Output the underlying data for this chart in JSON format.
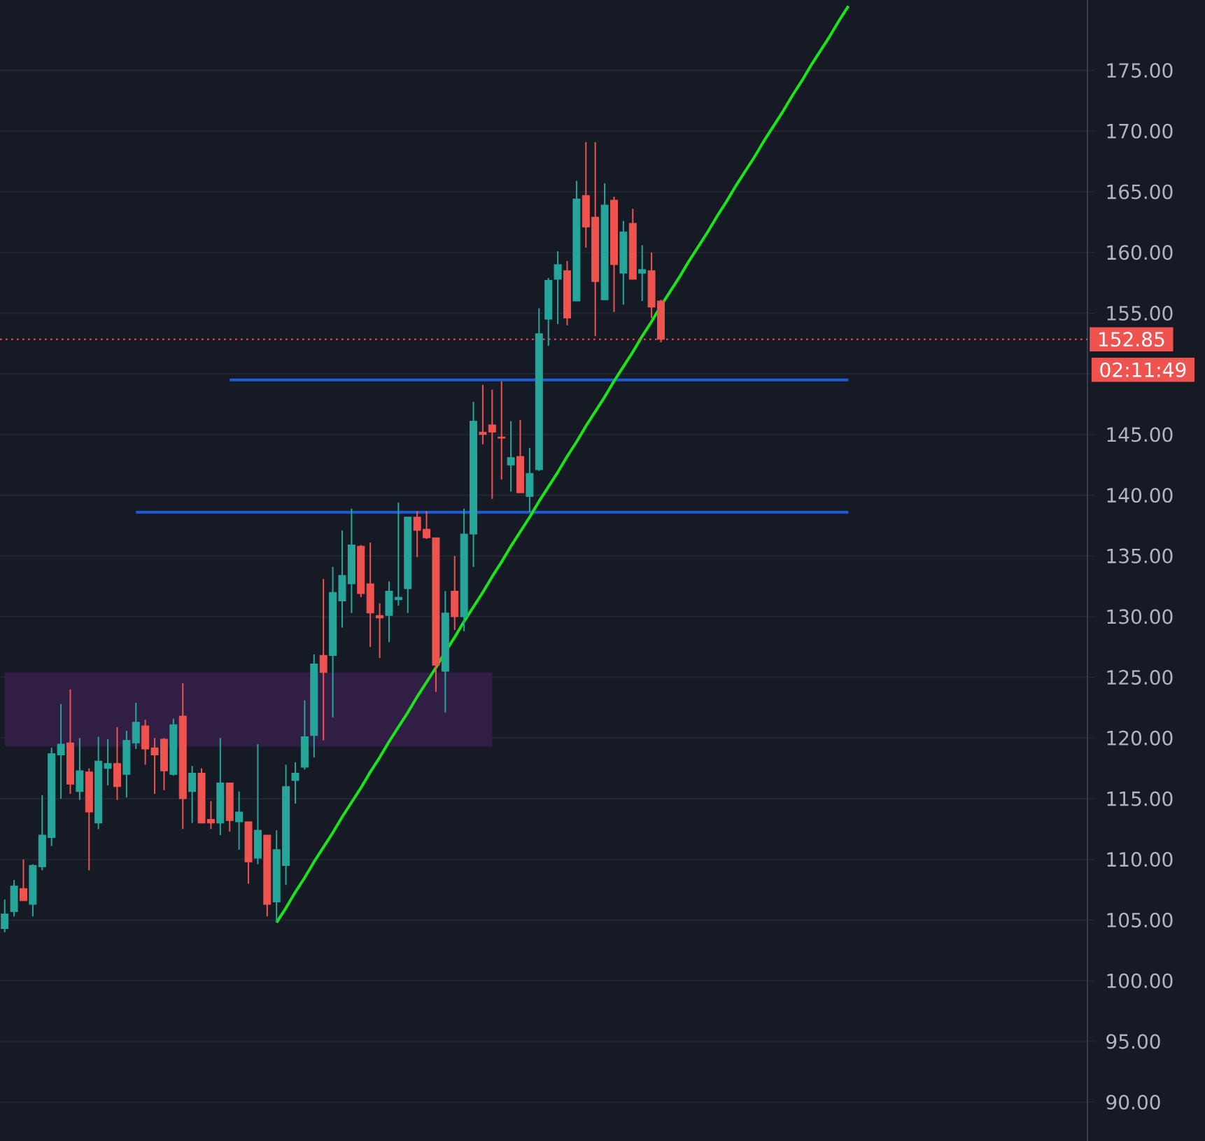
{
  "chart_data": {
    "type": "candlestick",
    "categories": [
      null,
      null,
      null,
      null,
      null,
      null,
      null,
      null,
      null,
      null,
      null,
      null,
      null,
      null,
      null,
      null,
      null,
      null,
      null,
      null,
      null,
      null,
      null,
      null,
      null,
      null,
      null,
      null,
      null,
      null,
      null,
      null,
      null,
      null,
      null,
      null,
      null,
      null,
      null,
      null,
      null,
      null,
      null,
      null,
      null,
      null,
      null,
      null,
      null,
      null,
      null,
      null,
      null,
      null,
      null,
      null,
      null,
      null,
      null,
      null,
      null,
      null,
      null,
      null,
      null,
      null,
      null,
      null,
      null,
      null,
      null,
      null,
      null,
      null,
      null,
      null,
      null,
      null,
      null,
      null,
      null,
      null,
      null,
      null,
      null,
      null,
      null,
      null,
      null,
      null,
      null,
      null,
      null,
      null,
      null,
      null,
      null,
      null,
      null,
      null,
      null,
      null,
      null,
      null,
      null,
      null,
      null,
      null,
      null,
      null,
      null,
      null,
      null,
      null,
      null,
      null
    ],
    "ohlc": [
      [
        104.3,
        106.7,
        104.0,
        105.5
      ],
      [
        105.7,
        108.3,
        105.3,
        107.8
      ],
      [
        107.6,
        110.0,
        106.6,
        106.6
      ],
      [
        106.3,
        109.6,
        105.3,
        109.5
      ],
      [
        109.4,
        115.3,
        109.1,
        112.0
      ],
      [
        111.8,
        119.2,
        111.1,
        118.7
      ],
      [
        118.6,
        122.8,
        115.0,
        119.5
      ],
      [
        119.6,
        124.0,
        115.4,
        116.2
      ],
      [
        115.6,
        120.0,
        114.9,
        117.3
      ],
      [
        117.2,
        117.5,
        109.1,
        113.9
      ],
      [
        113.0,
        120.1,
        112.5,
        118.1
      ],
      [
        117.5,
        119.9,
        116.1,
        117.9
      ],
      [
        117.9,
        120.9,
        114.9,
        116.0
      ],
      [
        117.0,
        120.6,
        115.1,
        119.8
      ],
      [
        119.6,
        122.9,
        119.1,
        121.3
      ],
      [
        121.0,
        121.5,
        117.8,
        119.1
      ],
      [
        119.2,
        120.0,
        115.4,
        118.6
      ],
      [
        119.9,
        120.0,
        115.7,
        117.3
      ],
      [
        117.0,
        121.6,
        116.9,
        121.1
      ],
      [
        121.8,
        124.5,
        112.5,
        115.0
      ],
      [
        115.6,
        117.7,
        113.0,
        117.1
      ],
      [
        117.1,
        117.5,
        113.0,
        113.0
      ],
      [
        113.3,
        114.8,
        112.5,
        113.0
      ],
      [
        113.0,
        120.0,
        112.0,
        116.3
      ],
      [
        116.3,
        116.3,
        112.3,
        113.2
      ],
      [
        113.1,
        115.6,
        110.8,
        113.9
      ],
      [
        113.1,
        113.1,
        108.0,
        109.8
      ],
      [
        110.1,
        119.5,
        109.6,
        112.4
      ],
      [
        112.0,
        112.0,
        105.3,
        106.3
      ],
      [
        106.5,
        112.4,
        104.8,
        110.8
      ],
      [
        109.5,
        117.8,
        107.9,
        116.0
      ],
      [
        116.5,
        118.0,
        114.6,
        117.1
      ],
      [
        117.6,
        123.1,
        117.4,
        120.1
      ],
      [
        120.2,
        126.9,
        118.4,
        126.1
      ],
      [
        126.8,
        133.1,
        119.8,
        125.4
      ],
      [
        126.8,
        134.1,
        121.7,
        132.0
      ],
      [
        131.3,
        137.1,
        129.1,
        133.4
      ],
      [
        132.7,
        138.9,
        130.3,
        135.9
      ],
      [
        135.8,
        135.9,
        131.6,
        131.9
      ],
      [
        132.7,
        136.1,
        127.5,
        130.3
      ],
      [
        130.1,
        131.1,
        126.6,
        129.9
      ],
      [
        130.1,
        132.9,
        127.9,
        132.1
      ],
      [
        131.4,
        139.4,
        130.9,
        131.6
      ],
      [
        132.3,
        138.2,
        130.3,
        138.2
      ],
      [
        138.2,
        138.7,
        134.9,
        137.1
      ],
      [
        137.2,
        138.7,
        136.4,
        136.5
      ],
      [
        136.5,
        136.5,
        123.8,
        126.0
      ],
      [
        125.5,
        132.1,
        122.1,
        130.3
      ],
      [
        132.1,
        135.0,
        128.9,
        130.0
      ],
      [
        130.0,
        138.9,
        128.8,
        136.8
      ],
      [
        136.8,
        147.7,
        134.1,
        146.1
      ],
      [
        145.2,
        149.1,
        144.2,
        145.0
      ],
      [
        145.8,
        148.7,
        139.7,
        145.2
      ],
      [
        144.8,
        149.4,
        141.3,
        144.7
      ],
      [
        142.5,
        146.1,
        140.3,
        143.1
      ],
      [
        143.2,
        146.2,
        140.2,
        140.2
      ],
      [
        139.9,
        143.9,
        138.6,
        141.8
      ],
      [
        142.1,
        155.4,
        142.0,
        153.3
      ],
      [
        154.5,
        157.9,
        152.3,
        157.7
      ],
      [
        157.8,
        160.1,
        154.1,
        159.0
      ],
      [
        158.5,
        159.3,
        154.0,
        154.6
      ],
      [
        156.0,
        165.9,
        156.0,
        164.4
      ],
      [
        164.7,
        169.1,
        160.4,
        162.1
      ],
      [
        162.9,
        169.1,
        153.1,
        157.6
      ],
      [
        156.1,
        165.7,
        156.1,
        163.9
      ],
      [
        164.3,
        164.6,
        155.1,
        159.0
      ],
      [
        158.3,
        162.6,
        155.7,
        161.7
      ],
      [
        162.4,
        163.6,
        157.8,
        157.8
      ],
      [
        158.3,
        160.6,
        156.0,
        158.6
      ],
      [
        158.5,
        160.0,
        154.6,
        155.5
      ],
      [
        156.0,
        156.1,
        152.6,
        152.85
      ],
      null,
      null,
      null,
      null,
      null,
      null,
      null,
      null,
      null,
      null,
      null,
      null,
      null,
      null,
      null,
      null,
      null,
      null,
      null,
      null,
      null,
      null,
      null,
      null,
      null,
      null,
      null,
      null,
      null,
      null,
      null,
      null,
      null,
      null,
      null,
      null,
      null,
      null,
      null,
      null,
      null,
      null,
      null,
      null,
      null
    ],
    "colors": [
      "#26a69a",
      "#26a69a",
      "#ef5350",
      "#26a69a",
      "#26a69a",
      "#26a69a",
      "#26a69a",
      "#ef5350",
      "#26a69a",
      "#ef5350",
      "#26a69a",
      "#26a69a",
      "#ef5350",
      "#26a69a",
      "#26a69a",
      "#ef5350",
      "#ef5350",
      "#ef5350",
      "#26a69a",
      "#ef5350",
      "#26a69a",
      "#ef5350",
      "#ef5350",
      "#26a69a",
      "#ef5350",
      "#26a69a",
      "#ef5350",
      "#26a69a",
      "#ef5350",
      "#26a69a",
      "#26a69a",
      "#26a69a",
      "#26a69a",
      "#26a69a",
      "#ef5350",
      "#26a69a",
      "#26a69a",
      "#26a69a",
      "#ef5350",
      "#ef5350",
      "#ef5350",
      "#26a69a",
      "#26a69a",
      "#26a69a",
      "#ef5350",
      "#ef5350",
      "#ef5350",
      "#26a69a",
      "#ef5350",
      "#26a69a",
      "#26a69a",
      "#ef5350",
      "#ef5350",
      "#ef5350",
      "#26a69a",
      "#ef5350",
      "#26a69a",
      "#26a69a",
      "#26a69a",
      "#26a69a",
      "#ef5350",
      "#26a69a",
      "#ef5350",
      "#ef5350",
      "#26a69a",
      "#ef5350",
      "#26a69a",
      "#ef5350",
      "#26a69a",
      "#ef5350",
      "#ef5350",
      null,
      null,
      null,
      null,
      null,
      null,
      null,
      null,
      null,
      null,
      null,
      null,
      null,
      null,
      null,
      null,
      null,
      null,
      null,
      null,
      null,
      null,
      null,
      null,
      null,
      null,
      null,
      null,
      null,
      null,
      null,
      null,
      null,
      null,
      null,
      null,
      null,
      null,
      null,
      null,
      null,
      null,
      null,
      null,
      null
    ],
    "series": [
      {
        "type": "line",
        "color": "#311e44",
        "values": [
          null,
          null,
          null,
          null,
          null,
          null,
          null,
          null,
          null,
          null,
          null,
          null,
          null,
          null,
          null,
          null,
          null,
          null,
          null,
          null,
          null,
          null,
          null,
          null,
          null,
          null,
          null,
          null,
          null,
          null,
          null,
          null,
          null,
          null,
          null,
          null,
          null,
          null,
          null,
          null,
          null,
          null,
          null,
          null,
          null,
          null,
          null,
          null,
          null,
          null,
          null,
          null,
          null,
          null,
          null,
          null,
          null,
          null,
          null,
          null,
          null,
          null,
          null,
          null,
          null,
          null,
          null,
          null,
          null,
          null,
          null,
          null,
          null,
          null,
          null,
          null,
          null,
          null,
          null,
          null,
          null,
          null,
          null,
          null,
          null,
          null,
          null,
          null,
          null,
          null,
          null,
          null,
          null,
          null,
          null,
          null,
          null,
          null,
          null,
          null,
          null,
          null,
          null,
          null,
          null,
          null,
          null,
          null,
          null,
          null,
          null,
          null,
          null,
          null,
          null,
          null
        ],
        "upper": [
          125.4,
          125.4,
          125.4,
          125.4,
          125.4,
          125.4,
          125.4,
          125.4,
          125.4,
          125.4,
          125.4,
          125.4,
          125.4,
          125.4,
          125.4,
          125.4,
          125.4,
          125.4,
          125.4,
          125.4,
          125.4,
          125.4,
          125.4,
          125.4,
          125.4,
          125.4,
          125.4,
          125.4,
          125.4,
          125.4,
          125.4,
          125.4,
          125.4,
          125.4,
          125.4,
          125.4,
          125.4,
          125.4,
          125.4,
          125.4,
          125.4,
          125.4,
          125.4,
          125.4,
          125.4,
          125.4,
          125.4,
          125.4,
          125.4,
          125.4,
          125.4,
          125.4,
          125.4,
          null,
          null,
          null,
          null,
          null,
          null,
          null,
          null,
          null,
          null,
          null,
          null,
          null,
          null,
          null,
          null,
          null,
          null,
          null,
          null,
          null,
          null,
          null,
          null,
          null,
          null,
          null,
          null,
          null,
          null,
          null,
          null,
          null,
          null,
          null,
          null,
          null,
          null,
          null,
          null,
          null,
          null,
          null,
          null,
          null,
          null,
          null,
          null,
          null,
          null,
          null,
          null,
          null,
          null,
          null,
          null,
          null,
          null,
          null,
          null,
          null,
          null,
          null
        ],
        "lower": [
          119.3,
          119.3,
          119.3,
          119.3,
          119.3,
          119.3,
          119.3,
          119.3,
          119.3,
          119.3,
          119.3,
          119.3,
          119.3,
          119.3,
          119.3,
          119.3,
          119.3,
          119.3,
          119.3,
          119.3,
          119.3,
          119.3,
          119.3,
          119.3,
          119.3,
          119.3,
          119.3,
          119.3,
          119.3,
          119.3,
          119.3,
          119.3,
          119.3,
          119.3,
          119.3,
          119.3,
          119.3,
          119.3,
          119.3,
          119.3,
          119.3,
          119.3,
          119.3,
          119.3,
          119.3,
          119.3,
          119.3,
          119.3,
          119.3,
          119.3,
          119.3,
          119.3,
          119.3,
          null,
          null,
          null,
          null,
          null,
          null,
          null,
          null,
          null,
          null,
          null,
          null,
          null,
          null,
          null,
          null,
          null,
          null,
          null,
          null,
          null,
          null,
          null,
          null,
          null,
          null,
          null,
          null,
          null,
          null,
          null,
          null,
          null,
          null,
          null,
          null,
          null,
          null,
          null,
          null,
          null,
          null,
          null,
          null,
          null,
          null,
          null,
          null,
          null,
          null,
          null,
          null,
          null,
          null,
          null,
          null,
          null,
          null,
          null,
          null,
          null,
          null,
          null
        ]
      },
      {
        "type": "line",
        "color": "#1e5bd6",
        "values": [
          null,
          null,
          null,
          null,
          null,
          null,
          null,
          null,
          null,
          null,
          null,
          null,
          null,
          null,
          null,
          null,
          null,
          null,
          null,
          null,
          null,
          null,
          null,
          null,
          149.5,
          149.5,
          149.5,
          149.5,
          149.5,
          149.5,
          149.5,
          149.5,
          149.5,
          149.5,
          149.5,
          149.5,
          149.5,
          149.5,
          149.5,
          149.5,
          149.5,
          149.5,
          149.5,
          149.5,
          149.5,
          149.5,
          149.5,
          149.5,
          149.5,
          149.5,
          149.5,
          149.5,
          149.5,
          149.5,
          149.5,
          149.5,
          149.5,
          149.5,
          149.5,
          149.5,
          149.5,
          149.5,
          149.5,
          149.5,
          149.5,
          149.5,
          149.5,
          149.5,
          149.5,
          149.5,
          149.5,
          149.5,
          149.5,
          149.5,
          149.5,
          149.5,
          149.5,
          149.5,
          149.5,
          149.5,
          149.5,
          149.5,
          149.5,
          149.5,
          149.5,
          149.5,
          149.5,
          149.5,
          149.5,
          149.5,
          149.5,
          null,
          null,
          null,
          null,
          null,
          null,
          null,
          null,
          null,
          null,
          null,
          null,
          null,
          null,
          null,
          null,
          null,
          null,
          null,
          null,
          null,
          null,
          null,
          null,
          null
        ]
      },
      {
        "type": "line",
        "color": "#1e5bd6",
        "values": [
          null,
          null,
          null,
          null,
          null,
          null,
          null,
          null,
          null,
          null,
          null,
          null,
          null,
          null,
          138.6,
          138.6,
          138.6,
          138.6,
          138.6,
          138.6,
          138.6,
          138.6,
          138.6,
          138.6,
          138.6,
          138.6,
          138.6,
          138.6,
          138.6,
          138.6,
          138.6,
          138.6,
          138.6,
          138.6,
          138.6,
          138.6,
          138.6,
          138.6,
          138.6,
          138.6,
          138.6,
          138.6,
          138.6,
          138.6,
          138.6,
          138.6,
          138.6,
          138.6,
          138.6,
          138.6,
          138.6,
          138.6,
          138.6,
          138.6,
          138.6,
          138.6,
          138.6,
          138.6,
          138.6,
          138.6,
          138.6,
          138.6,
          138.6,
          138.6,
          138.6,
          138.6,
          138.6,
          138.6,
          138.6,
          138.6,
          138.6,
          138.6,
          138.6,
          138.6,
          138.6,
          138.6,
          138.6,
          138.6,
          138.6,
          138.6,
          138.6,
          138.6,
          138.6,
          138.6,
          138.6,
          138.6,
          138.6,
          138.6,
          138.6,
          138.6,
          138.6,
          null,
          null,
          null,
          null,
          null,
          null,
          null,
          null,
          null,
          null,
          null,
          null,
          null,
          null,
          null,
          null,
          null,
          null,
          null,
          null,
          null,
          null,
          null,
          null,
          null
        ]
      },
      {
        "type": "line",
        "color": "#19e619",
        "values": [
          null,
          null,
          null,
          null,
          null,
          null,
          null,
          null,
          null,
          null,
          null,
          null,
          null,
          null,
          null,
          null,
          null,
          null,
          null,
          null,
          null,
          null,
          null,
          null,
          null,
          null,
          null,
          null,
          null,
          104.8,
          106.0,
          107.3,
          108.5,
          109.8,
          111.0,
          112.2,
          113.5,
          114.7,
          115.9,
          117.2,
          118.4,
          119.7,
          120.9,
          122.1,
          123.4,
          124.6,
          125.8,
          127.1,
          128.3,
          129.6,
          130.8,
          132.0,
          133.3,
          134.5,
          135.8,
          137.0,
          138.2,
          139.5,
          140.7,
          141.9,
          143.2,
          144.4,
          145.7,
          146.9,
          148.1,
          149.4,
          150.6,
          151.8,
          153.1,
          154.3,
          155.6,
          156.8,
          158.0,
          159.3,
          160.5,
          161.7,
          163.0,
          164.2,
          165.5,
          166.7,
          167.9,
          169.2,
          170.4,
          171.6,
          172.9,
          174.1,
          175.4,
          176.6,
          177.8,
          179.1,
          180.3,
          null,
          null,
          null,
          null,
          null,
          null,
          null,
          null,
          null,
          null,
          null,
          null,
          null,
          null,
          null,
          null,
          null,
          null,
          null,
          null,
          null,
          null,
          null,
          null,
          null
        ]
      }
    ],
    "ref_lines": [
      {
        "axis": "y",
        "value": 152.85,
        "label": "152.85",
        "color": "#ef5350",
        "line_style": "dotted"
      }
    ],
    "annotations": [
      "02:11:49"
    ],
    "ylim": [
      86.8,
      180.8
    ],
    "yticks": [
      {
        "value": 90,
        "label": "90.00"
      },
      {
        "value": 95,
        "label": "95.00"
      },
      {
        "value": 100,
        "label": "100.00"
      },
      {
        "value": 105,
        "label": "105.00"
      },
      {
        "value": 110,
        "label": "110.00"
      },
      {
        "value": 115,
        "label": "115.00"
      },
      {
        "value": 120,
        "label": "120.00"
      },
      {
        "value": 125,
        "label": "125.00"
      },
      {
        "value": 130,
        "label": "130.00"
      },
      {
        "value": 135,
        "label": "135.00"
      },
      {
        "value": 140,
        "label": "140.00"
      },
      {
        "value": 145,
        "label": "145.00"
      },
      {
        "value": 150,
        "label": null
      },
      {
        "value": 155,
        "label": "155.00"
      },
      {
        "value": 160,
        "label": "160.00"
      },
      {
        "value": 165,
        "label": "165.00"
      },
      {
        "value": 170,
        "label": "170.00"
      },
      {
        "value": 175,
        "label": "175.00"
      }
    ],
    "grid": "y"
  }
}
